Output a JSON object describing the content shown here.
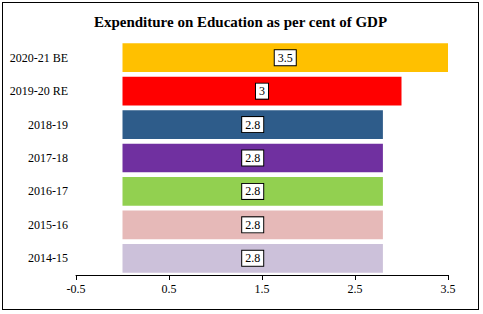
{
  "chart_data": {
    "type": "bar",
    "title": "Expenditure on Education as per cent of GDP",
    "orientation": "horizontal",
    "categories": [
      "2014-15",
      "2015-16",
      "2016-17",
      "2017-18",
      "2018-19",
      "2019-20 RE",
      "2020-21 BE"
    ],
    "values": [
      2.8,
      2.8,
      2.8,
      2.8,
      2.8,
      3,
      3.5
    ],
    "colors": [
      "#ccc1da",
      "#e6b9b8",
      "#92d050",
      "#7030a0",
      "#2e5c8a",
      "#ff0000",
      "#ffc000"
    ],
    "xlim": [
      -0.5,
      3.5
    ],
    "xticks": [
      -0.5,
      0.5,
      1.5,
      2.5,
      3.5
    ],
    "grid": false,
    "data_labels": true
  }
}
